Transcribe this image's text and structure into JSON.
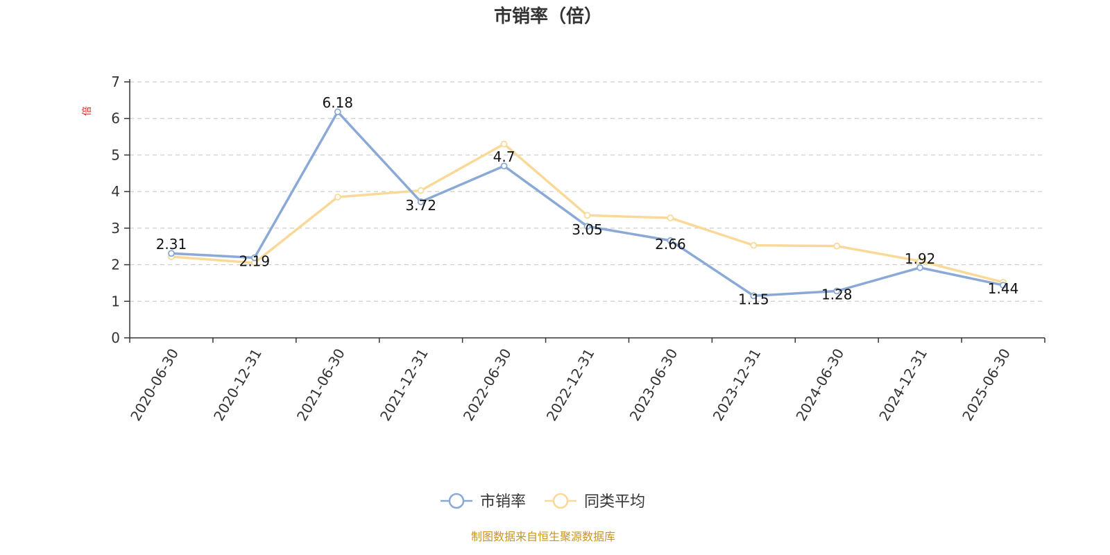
{
  "chart_data": {
    "type": "line",
    "title": "市销率（倍）",
    "ylabel": "倍",
    "xlabel": "",
    "ylim": [
      0,
      7
    ],
    "yticks": [
      "0",
      "1",
      "2",
      "3",
      "4",
      "5",
      "6",
      "7"
    ],
    "grid": true,
    "legend_position": "bottom",
    "categories": [
      "2020-06-30",
      "2020-12-31",
      "2021-06-30",
      "2021-12-31",
      "2022-06-30",
      "2022-12-31",
      "2023-06-30",
      "2023-12-31",
      "2024-06-30",
      "2024-12-31",
      "2025-06-30"
    ],
    "series": [
      {
        "name": "市销率",
        "color": "#8aa9d6",
        "values": [
          2.31,
          2.19,
          6.18,
          3.72,
          4.7,
          3.05,
          2.66,
          1.15,
          1.28,
          1.92,
          1.44
        ],
        "labels": [
          "2.31",
          "2.19",
          "6.18",
          "3.72",
          "4.7",
          "3.05",
          "2.66",
          "1.15",
          "1.28",
          "1.92",
          "1.44"
        ]
      },
      {
        "name": "同类平均",
        "color": "#f9d998",
        "values": [
          2.22,
          2.05,
          3.85,
          4.03,
          5.3,
          3.35,
          3.28,
          2.53,
          2.51,
          2.1,
          1.52
        ]
      }
    ],
    "source_note": "制图数据来自恒生聚源数据库",
    "colors": {
      "axis": "#333333",
      "grid": "#cccccc",
      "unit": "#e02020",
      "source": "#c8961e"
    }
  }
}
